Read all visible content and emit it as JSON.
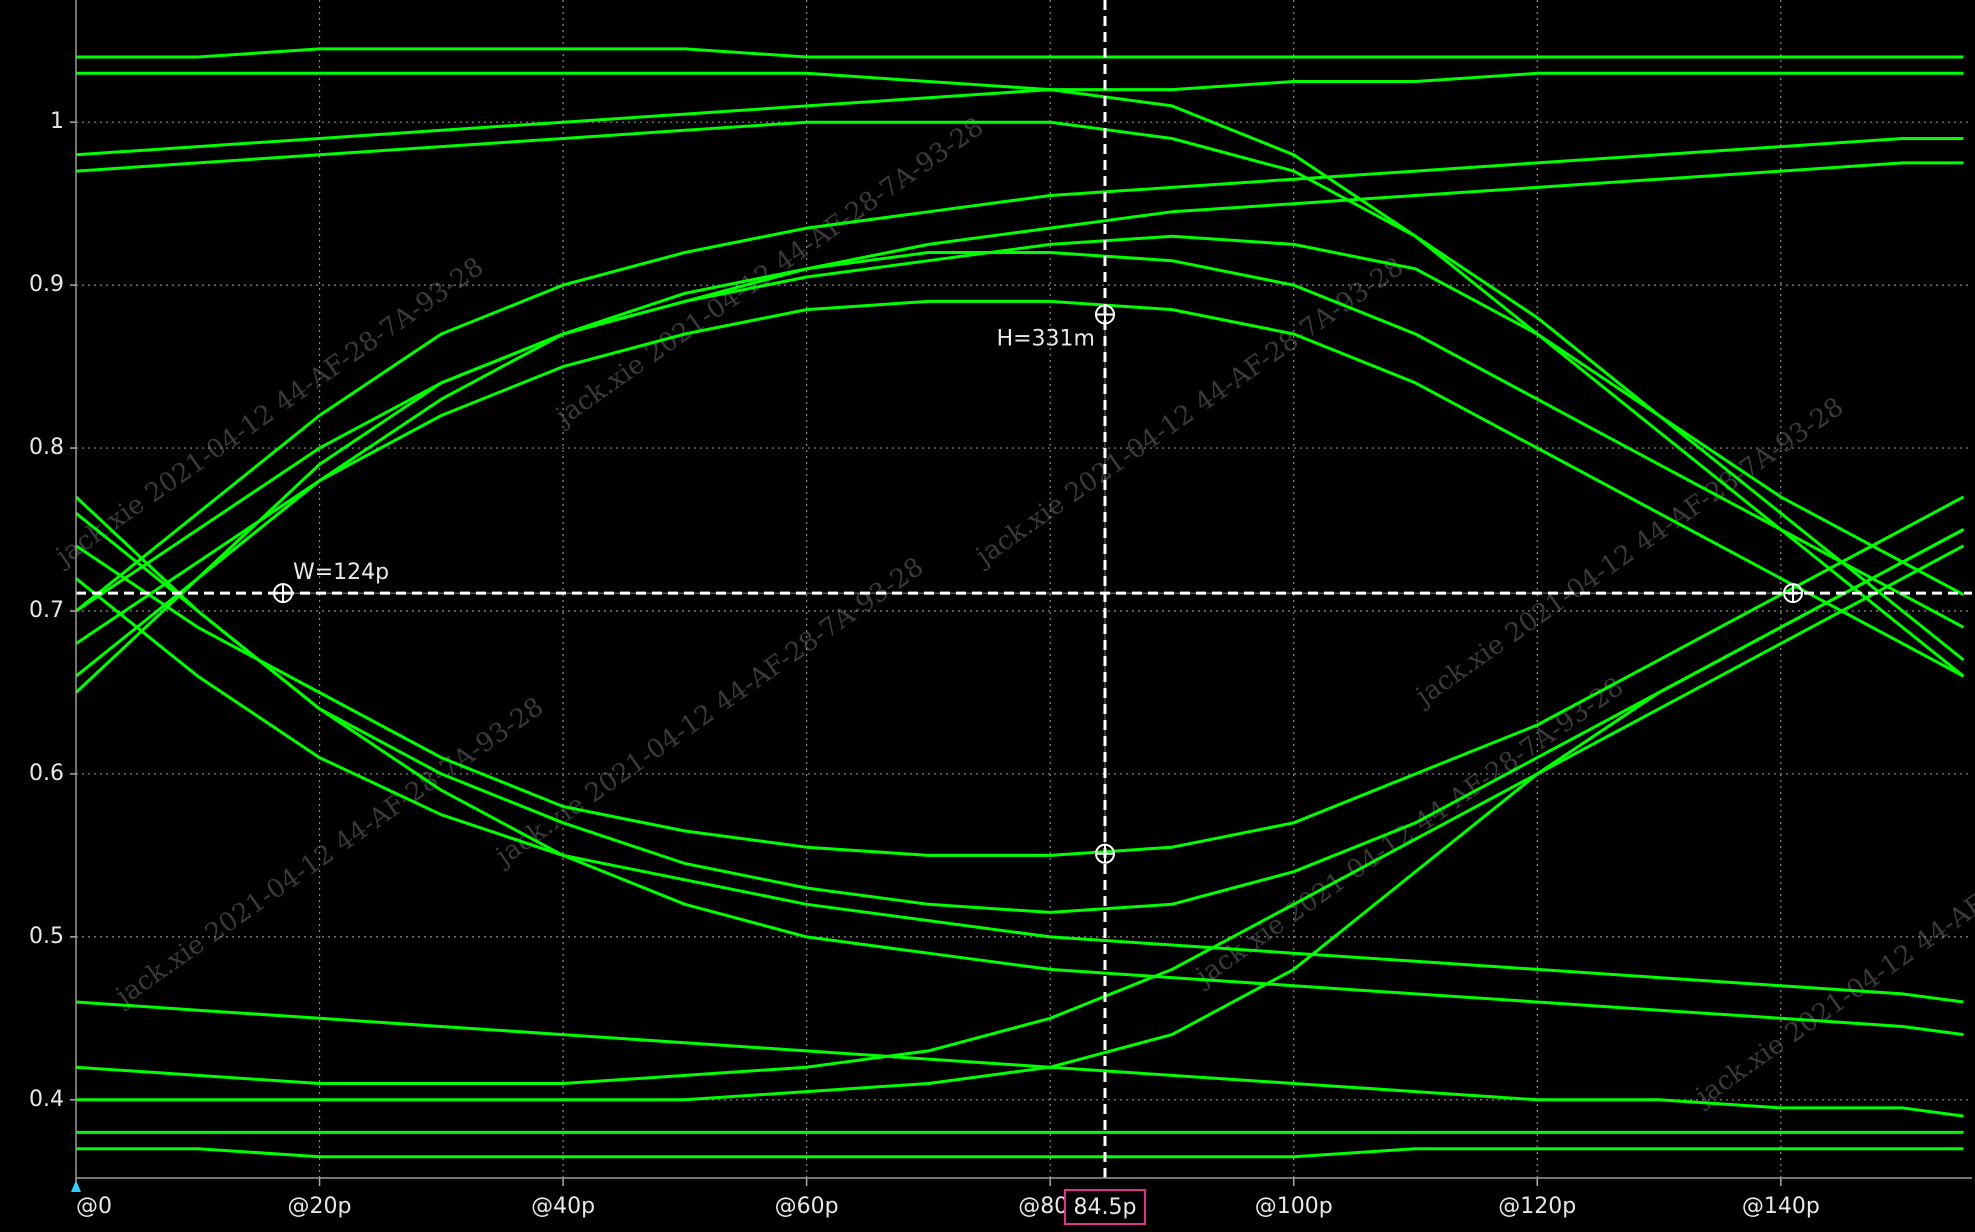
{
  "watermark": "jack.xie 2021-04-12 44-AF-28-7A-93-28",
  "chart_data": {
    "type": "line",
    "color": "#00ff00",
    "grid": true,
    "xlim": [
      0,
      155.7
    ],
    "ylim": [
      0.352,
      1.075
    ],
    "xticks": [
      {
        "value": 0,
        "label": "@0"
      },
      {
        "value": 20,
        "label": "@20p"
      },
      {
        "value": 40,
        "label": "@40p"
      },
      {
        "value": 60,
        "label": "@60p"
      },
      {
        "value": 80,
        "label": "@80p"
      },
      {
        "value": 100,
        "label": "@100p"
      },
      {
        "value": 120,
        "label": "@120p"
      },
      {
        "value": 140,
        "label": "@140p"
      }
    ],
    "yticks": [
      0.4,
      0.5,
      0.6,
      0.7,
      0.8,
      0.9,
      1
    ],
    "cursor_x": {
      "value": 84.5,
      "label": "84.5p"
    },
    "cursor_y": 0.711,
    "markers": [
      {
        "x": 17,
        "y": 0.711
      },
      {
        "x": 141,
        "y": 0.711
      },
      {
        "x": 84.5,
        "y": 0.882
      },
      {
        "x": 84.5,
        "y": 0.551
      }
    ],
    "width": {
      "value": 124,
      "label": "W=124p"
    },
    "height": {
      "value": 0.331,
      "label": "H=331m"
    },
    "x": [
      0,
      10,
      20,
      30,
      40,
      50,
      60,
      70,
      80,
      90,
      100,
      110,
      120,
      130,
      140,
      150,
      155
    ],
    "series": [
      {
        "values": [
          0.68,
          0.73,
          0.78,
          0.82,
          0.85,
          0.87,
          0.885,
          0.89,
          0.89,
          0.885,
          0.87,
          0.84,
          0.8,
          0.76,
          0.72,
          0.68,
          0.66
        ]
      },
      {
        "values": [
          0.66,
          0.72,
          0.78,
          0.83,
          0.87,
          0.895,
          0.91,
          0.92,
          0.92,
          0.915,
          0.9,
          0.87,
          0.83,
          0.79,
          0.75,
          0.71,
          0.69
        ]
      },
      {
        "values": [
          0.7,
          0.75,
          0.8,
          0.84,
          0.87,
          0.89,
          0.905,
          0.915,
          0.925,
          0.93,
          0.925,
          0.91,
          0.87,
          0.82,
          0.77,
          0.73,
          0.71
        ]
      },
      {
        "values": [
          0.65,
          0.72,
          0.79,
          0.84,
          0.87,
          0.89,
          0.91,
          0.925,
          0.935,
          0.945,
          0.95,
          0.955,
          0.96,
          0.965,
          0.97,
          0.975,
          0.975
        ]
      },
      {
        "values": [
          0.7,
          0.76,
          0.82,
          0.87,
          0.9,
          0.92,
          0.935,
          0.945,
          0.955,
          0.96,
          0.965,
          0.97,
          0.975,
          0.98,
          0.985,
          0.99,
          0.99
        ]
      },
      {
        "values": [
          0.74,
          0.69,
          0.65,
          0.61,
          0.58,
          0.565,
          0.555,
          0.55,
          0.55,
          0.555,
          0.57,
          0.6,
          0.63,
          0.67,
          0.71,
          0.75,
          0.77
        ]
      },
      {
        "values": [
          0.76,
          0.7,
          0.64,
          0.6,
          0.57,
          0.545,
          0.53,
          0.52,
          0.515,
          0.52,
          0.54,
          0.57,
          0.61,
          0.65,
          0.69,
          0.73,
          0.75
        ]
      },
      {
        "values": [
          0.77,
          0.7,
          0.64,
          0.59,
          0.55,
          0.52,
          0.5,
          0.49,
          0.48,
          0.475,
          0.47,
          0.465,
          0.46,
          0.455,
          0.45,
          0.445,
          0.44
        ]
      },
      {
        "values": [
          0.72,
          0.66,
          0.61,
          0.575,
          0.55,
          0.535,
          0.52,
          0.51,
          0.5,
          0.495,
          0.49,
          0.485,
          0.48,
          0.475,
          0.47,
          0.465,
          0.46
        ]
      },
      {
        "values": [
          1.03,
          1.03,
          1.03,
          1.03,
          1.03,
          1.03,
          1.03,
          1.025,
          1.02,
          1.01,
          0.98,
          0.93,
          0.87,
          0.81,
          0.75,
          0.69,
          0.66
        ]
      },
      {
        "values": [
          0.97,
          0.975,
          0.98,
          0.985,
          0.99,
          0.995,
          1.0,
          1.0,
          1.0,
          0.99,
          0.97,
          0.93,
          0.88,
          0.82,
          0.76,
          0.7,
          0.67
        ]
      },
      {
        "values": [
          1.04,
          1.04,
          1.045,
          1.045,
          1.045,
          1.045,
          1.04,
          1.04,
          1.04,
          1.04,
          1.04,
          1.04,
          1.04,
          1.04,
          1.04,
          1.04,
          1.04
        ]
      },
      {
        "values": [
          0.98,
          0.985,
          0.99,
          0.995,
          1.0,
          1.005,
          1.01,
          1.015,
          1.02,
          1.02,
          1.025,
          1.025,
          1.03,
          1.03,
          1.03,
          1.03,
          1.03
        ]
      },
      {
        "values": [
          0.38,
          0.38,
          0.38,
          0.38,
          0.38,
          0.38,
          0.38,
          0.38,
          0.38,
          0.38,
          0.38,
          0.38,
          0.38,
          0.38,
          0.38,
          0.38,
          0.38
        ]
      },
      {
        "values": [
          0.46,
          0.455,
          0.45,
          0.445,
          0.44,
          0.435,
          0.43,
          0.425,
          0.42,
          0.415,
          0.41,
          0.405,
          0.4,
          0.4,
          0.395,
          0.395,
          0.39
        ]
      },
      {
        "values": [
          0.4,
          0.4,
          0.4,
          0.4,
          0.4,
          0.4,
          0.405,
          0.41,
          0.42,
          0.44,
          0.48,
          0.54,
          0.6,
          0.65,
          0.69,
          0.73,
          0.75
        ]
      },
      {
        "values": [
          0.42,
          0.415,
          0.41,
          0.41,
          0.41,
          0.415,
          0.42,
          0.43,
          0.45,
          0.48,
          0.52,
          0.56,
          0.6,
          0.64,
          0.68,
          0.72,
          0.74
        ]
      },
      {
        "values": [
          0.37,
          0.37,
          0.365,
          0.365,
          0.365,
          0.365,
          0.365,
          0.365,
          0.365,
          0.365,
          0.365,
          0.37,
          0.37,
          0.37,
          0.37,
          0.37,
          0.37
        ]
      }
    ]
  }
}
